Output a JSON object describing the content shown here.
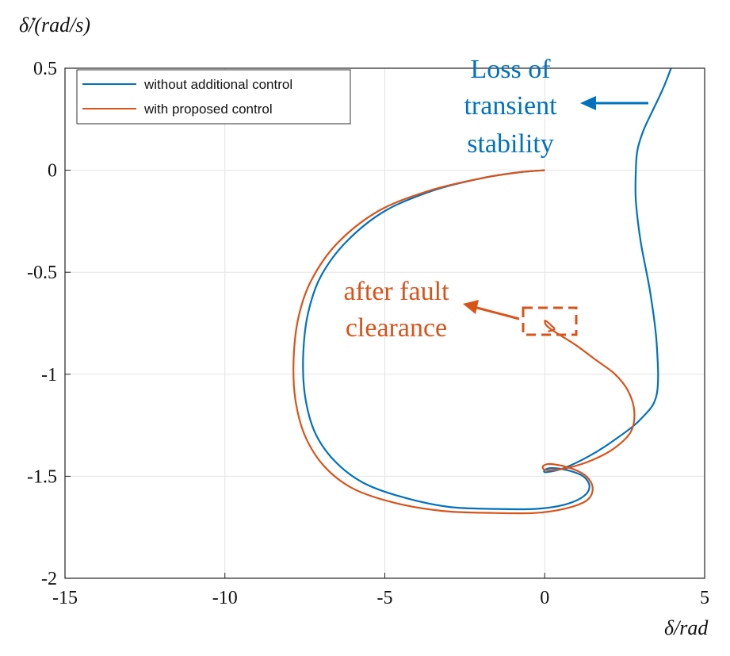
{
  "chart_data": {
    "type": "line",
    "title": "",
    "xlabel": "δ/rad",
    "ylabel": "δ̇/(rad/s)",
    "xlim": [
      -15,
      5
    ],
    "ylim": [
      -2,
      0.5
    ],
    "xticks": [
      -15,
      -10,
      -5,
      0,
      5
    ],
    "yticks": [
      0.5,
      0,
      -0.5,
      -1,
      -1.5,
      -2
    ],
    "xtick_labels": [
      "-15",
      "-10",
      "-5",
      "0",
      "5"
    ],
    "ytick_labels": [
      "0.5",
      "0",
      "-0.5",
      "-1",
      "-1.5",
      "-2"
    ],
    "grid": true,
    "legend_position": "top-left",
    "series": [
      {
        "name": "without additional control",
        "color": "#0072BD",
        "x": [
          0,
          -0.8,
          -2.0,
          -3.5,
          -5.0,
          -6.2,
          -7.0,
          -7.4,
          -7.55,
          -7.5,
          -7.2,
          -6.6,
          -5.7,
          -4.5,
          -3.0,
          -1.5,
          -0.3,
          0.6,
          1.2,
          1.4,
          1.2,
          0.7,
          0.2,
          0.0,
          0.05,
          0.6,
          1.4,
          2.2,
          3.0,
          3.5,
          3.5,
          3.3,
          3.0,
          2.85,
          2.85,
          2.9,
          3.1,
          3.4,
          3.7,
          3.95
        ],
        "y": [
          0,
          -0.01,
          -0.04,
          -0.1,
          -0.2,
          -0.35,
          -0.52,
          -0.7,
          -0.9,
          -1.1,
          -1.28,
          -1.42,
          -1.53,
          -1.6,
          -1.65,
          -1.66,
          -1.66,
          -1.64,
          -1.6,
          -1.55,
          -1.5,
          -1.47,
          -1.46,
          -1.47,
          -1.48,
          -1.46,
          -1.4,
          -1.32,
          -1.22,
          -1.1,
          -0.85,
          -0.6,
          -0.35,
          -0.15,
          0.0,
          0.1,
          0.2,
          0.3,
          0.4,
          0.5
        ]
      },
      {
        "name": "with proposed control",
        "color": "#D95319",
        "x": [
          0,
          -0.8,
          -2.0,
          -3.6,
          -5.2,
          -6.5,
          -7.3,
          -7.7,
          -7.85,
          -7.8,
          -7.5,
          -6.9,
          -6.0,
          -4.7,
          -3.2,
          -1.6,
          -0.3,
          0.6,
          1.3,
          1.5,
          1.3,
          0.8,
          0.2,
          -0.05,
          0.05,
          0.7,
          1.5,
          2.2,
          2.7,
          2.8,
          2.6,
          2.2,
          1.6,
          1.0,
          0.5,
          0.2,
          0.05,
          0.0,
          0.05,
          0.2,
          0.3,
          0.1
        ],
        "y": [
          0,
          -0.01,
          -0.04,
          -0.1,
          -0.2,
          -0.36,
          -0.54,
          -0.72,
          -0.92,
          -1.12,
          -1.3,
          -1.45,
          -1.56,
          -1.63,
          -1.67,
          -1.68,
          -1.68,
          -1.66,
          -1.62,
          -1.56,
          -1.5,
          -1.46,
          -1.44,
          -1.45,
          -1.47,
          -1.46,
          -1.42,
          -1.36,
          -1.28,
          -1.18,
          -1.08,
          -1.0,
          -0.93,
          -0.86,
          -0.81,
          -0.78,
          -0.76,
          -0.74,
          -0.74,
          -0.76,
          -0.78,
          -0.79
        ]
      }
    ],
    "annotations": [
      {
        "lines": [
          "Loss of",
          "transient",
          "stability"
        ],
        "color": "#0072BD"
      },
      {
        "lines": [
          "after fault",
          "clearance"
        ],
        "color": "#D95319"
      }
    ]
  }
}
